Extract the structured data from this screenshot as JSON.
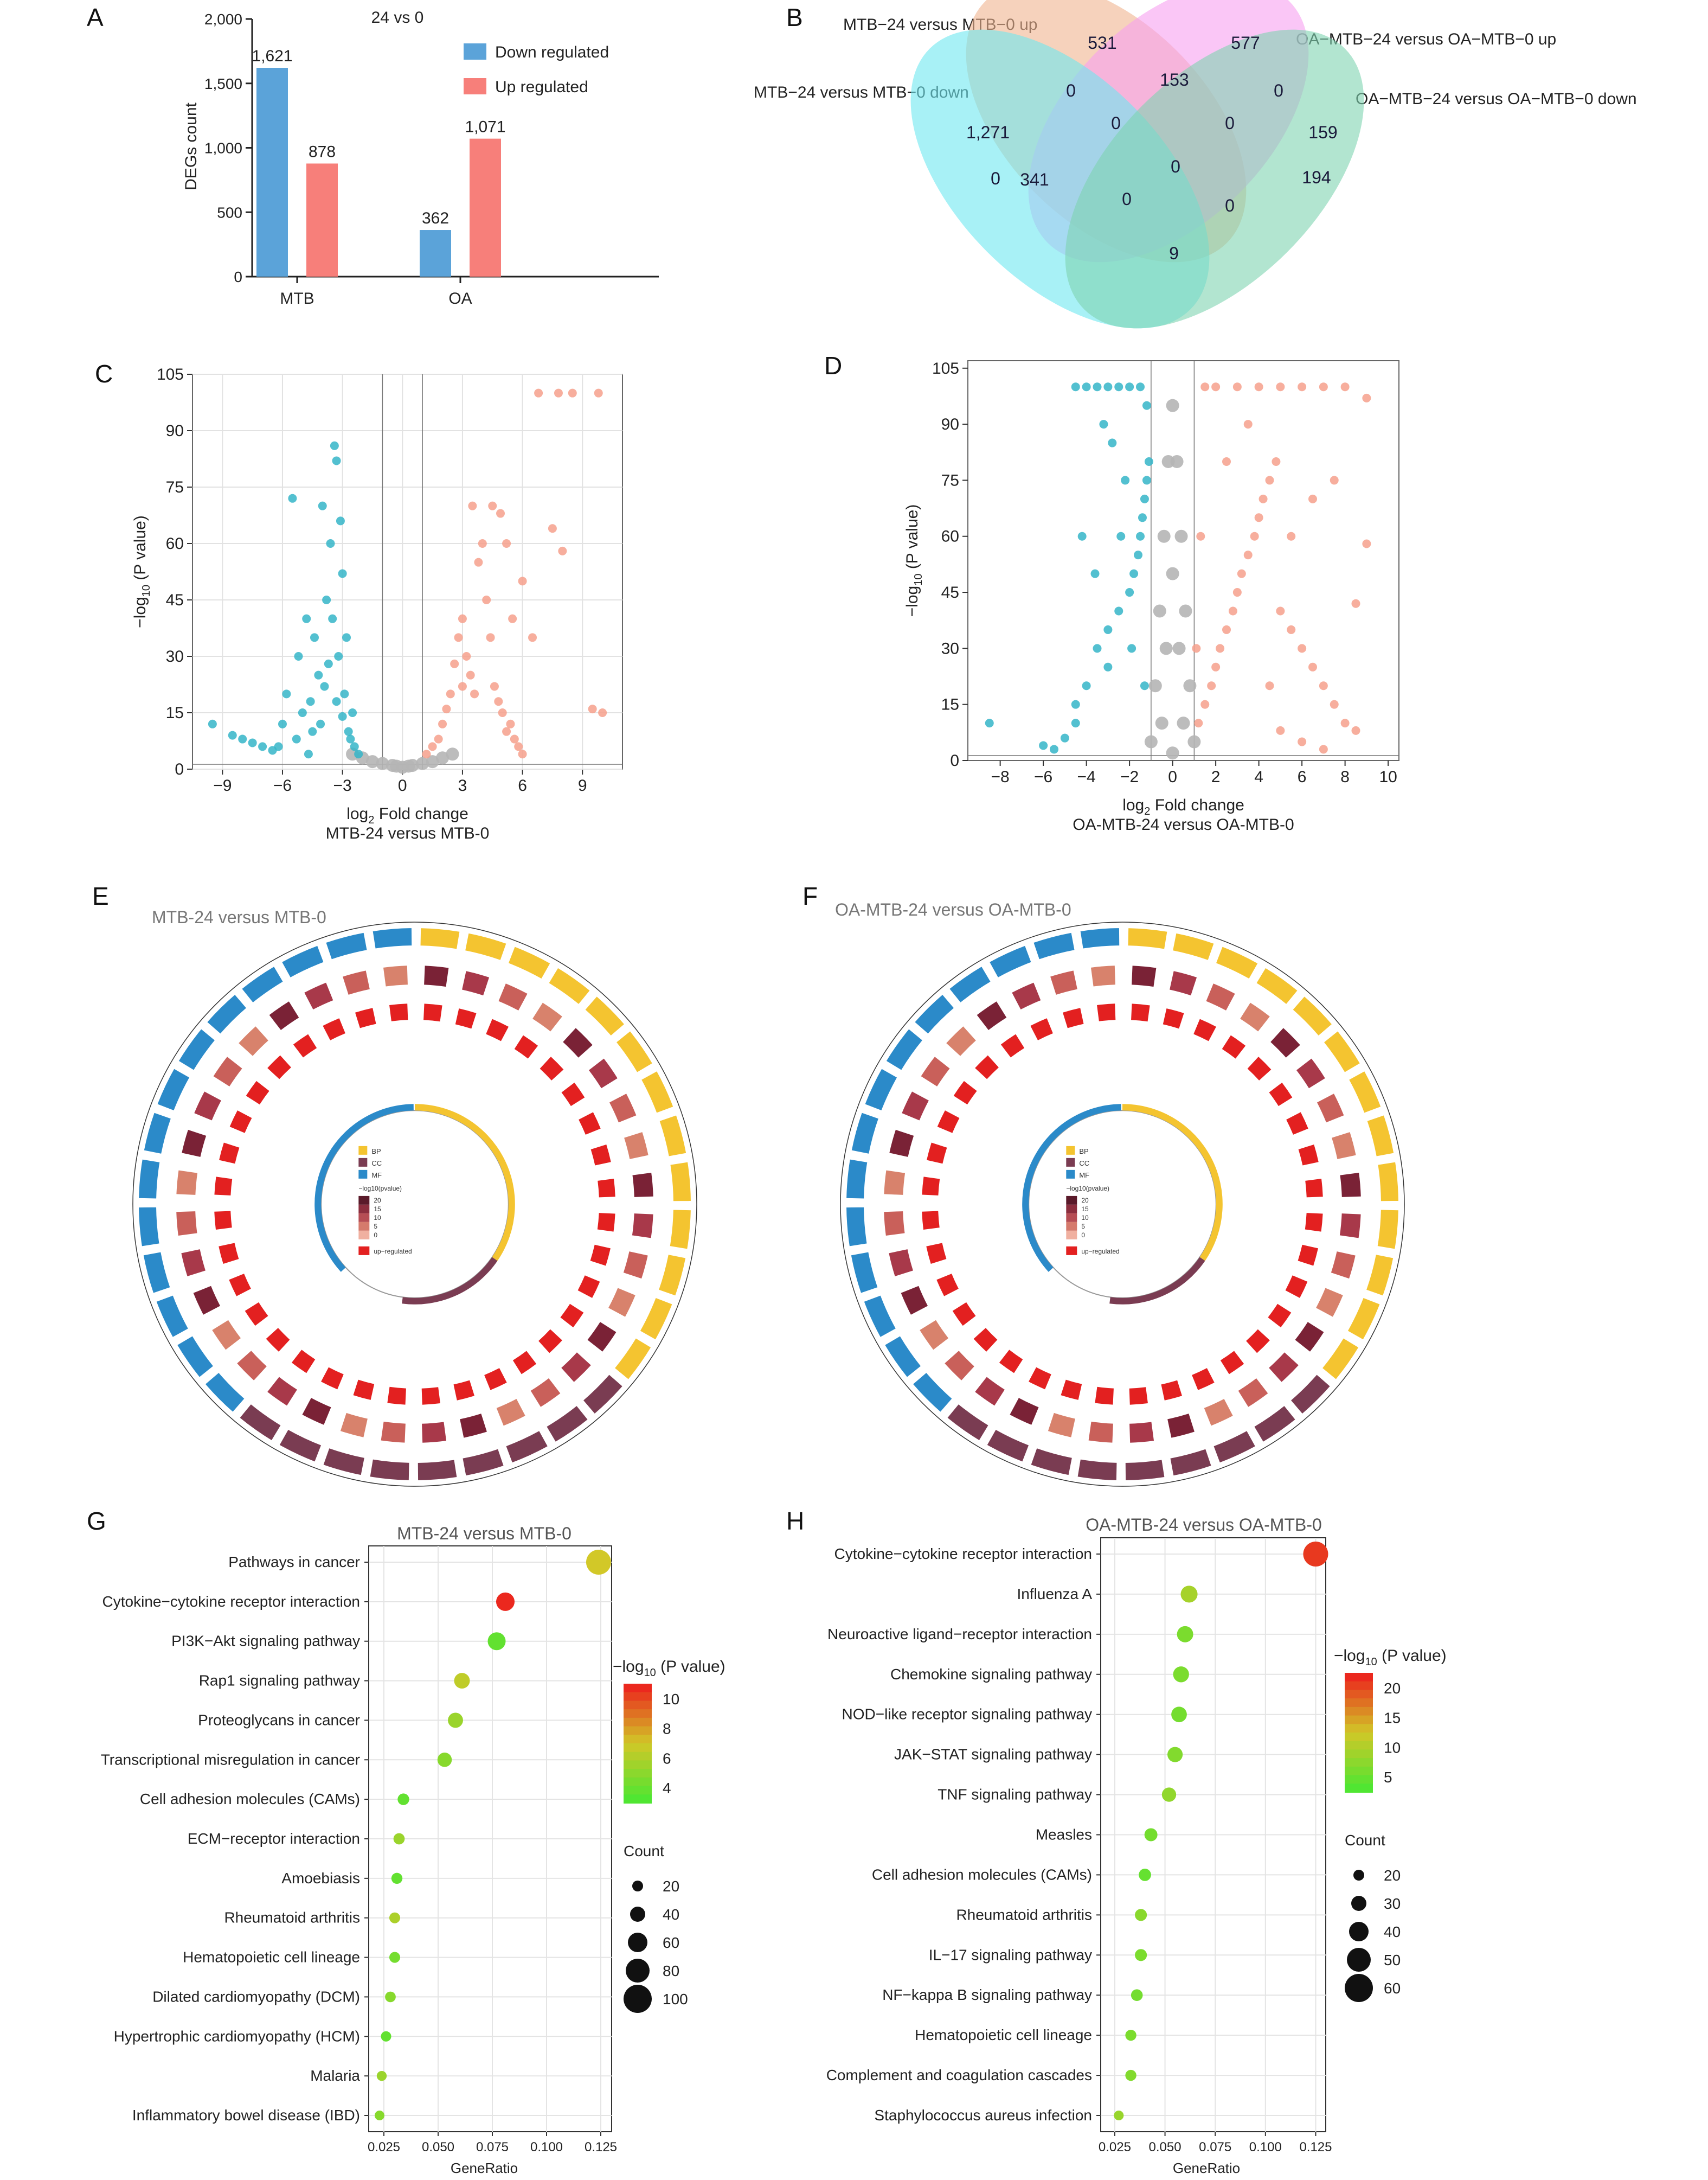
{
  "panels": {
    "A": {
      "letter": "A"
    },
    "B": {
      "letter": "B"
    },
    "C": {
      "letter": "C"
    },
    "D": {
      "letter": "D"
    },
    "E": {
      "letter": "E"
    },
    "F": {
      "letter": "F"
    },
    "G": {
      "letter": "G"
    },
    "H": {
      "letter": "H"
    }
  },
  "colors": {
    "down": "#5ba3d9",
    "up": "#f77f7a",
    "volcano_down": "#35b5c8",
    "volcano_up": "#f6a08c",
    "volcano_ns": "#b5b5b5",
    "venn": [
      "#f0b48f",
      "#f7a0f0",
      "#6ee8f0",
      "#7fd4b0"
    ]
  },
  "chart_data": [
    {
      "id": "A",
      "type": "bar",
      "title": "24 vs 0",
      "ylabel": "DEGs count",
      "categories": [
        "MTB",
        "OA"
      ],
      "series": [
        {
          "name": "Down regulated",
          "values": [
            1621,
            362
          ],
          "labels": [
            "1,621",
            "362"
          ]
        },
        {
          "name": "Up regulated",
          "values": [
            878,
            1071
          ],
          "labels": [
            "878",
            "1,071"
          ]
        }
      ],
      "ylim": [
        0,
        2000
      ],
      "yticks": [
        "0",
        "500",
        "1,000",
        "1,500",
        "2,000"
      ],
      "legend": "top-right"
    },
    {
      "id": "B",
      "type": "venn",
      "sets": [
        "MTB−24 versus MTB−0 up",
        "OA−MTB−24 versus OA−MTB−0 up",
        "MTB−24 versus MTB−0 down",
        "OA−MTB−24 versus OA−MTB−0 down"
      ],
      "regions": [
        "531",
        "577",
        "1,271",
        "159",
        "0",
        "153",
        "0",
        "0",
        "0",
        "0",
        "341",
        "0",
        "194",
        "0",
        "0",
        "9"
      ]
    },
    {
      "id": "C",
      "type": "scatter",
      "xlabel_main": "log",
      "xlabel_sub": "2",
      "xlabel_rest": " Fold change",
      "subtitle": "MTB-24 versus MTB-0",
      "ylabel_pre": "−log",
      "ylabel_sub": "10",
      "ylabel_rest": " (P value)",
      "xticks": [
        "−9",
        "−6",
        "−3",
        "0",
        "3",
        "6",
        "9"
      ],
      "xtick_values": [
        -9,
        -6,
        -3,
        0,
        3,
        6,
        9
      ],
      "yticks": [
        "0",
        "15",
        "30",
        "45",
        "60",
        "75",
        "90",
        "105"
      ],
      "ytick_values": [
        0,
        15,
        30,
        45,
        60,
        75,
        90,
        105
      ],
      "xlim": [
        -10.5,
        11
      ],
      "ylim": [
        0,
        105
      ],
      "down_points": [
        [
          -9.5,
          12
        ],
        [
          -8.5,
          9
        ],
        [
          -8,
          8
        ],
        [
          -7.5,
          7
        ],
        [
          -7,
          6
        ],
        [
          -6.5,
          5
        ],
        [
          -6,
          12
        ],
        [
          -5.8,
          20
        ],
        [
          -5.5,
          72
        ],
        [
          -5.2,
          30
        ],
        [
          -5,
          15
        ],
        [
          -4.8,
          40
        ],
        [
          -4.5,
          10
        ],
        [
          -4.2,
          25
        ],
        [
          -4,
          70
        ],
        [
          -3.8,
          45
        ],
        [
          -3.6,
          60
        ],
        [
          -3.4,
          86
        ],
        [
          -3.3,
          82
        ],
        [
          -3.2,
          30
        ],
        [
          -3.1,
          66
        ],
        [
          -3,
          52
        ],
        [
          -2.9,
          20
        ],
        [
          -2.8,
          35
        ],
        [
          -2.7,
          10
        ],
        [
          -2.6,
          8
        ],
        [
          -2.5,
          15
        ],
        [
          -4.6,
          18
        ],
        [
          -4.1,
          12
        ],
        [
          -3.5,
          40
        ],
        [
          -3.7,
          28
        ],
        [
          -5.3,
          8
        ],
        [
          -6.2,
          6
        ],
        [
          -4.4,
          35
        ],
        [
          -3.9,
          22
        ],
        [
          -2.4,
          6
        ],
        [
          -2.2,
          4
        ],
        [
          -3,
          14
        ],
        [
          -3.3,
          18
        ],
        [
          -4.7,
          4
        ]
      ],
      "up_points": [
        [
          1.2,
          4
        ],
        [
          1.5,
          6
        ],
        [
          1.8,
          8
        ],
        [
          2,
          12
        ],
        [
          2.2,
          16
        ],
        [
          2.4,
          20
        ],
        [
          2.6,
          28
        ],
        [
          2.8,
          35
        ],
        [
          3,
          40
        ],
        [
          3.2,
          30
        ],
        [
          3.4,
          25
        ],
        [
          3.6,
          20
        ],
        [
          3.8,
          55
        ],
        [
          4,
          60
        ],
        [
          4.2,
          45
        ],
        [
          4.4,
          35
        ],
        [
          4.6,
          22
        ],
        [
          4.8,
          18
        ],
        [
          5,
          15
        ],
        [
          5.2,
          10
        ],
        [
          5.4,
          12
        ],
        [
          5.6,
          8
        ],
        [
          5.8,
          6
        ],
        [
          6,
          4
        ],
        [
          4.5,
          70
        ],
        [
          4.9,
          68
        ],
        [
          5.2,
          60
        ],
        [
          6,
          50
        ],
        [
          6.5,
          35
        ],
        [
          7.5,
          64
        ],
        [
          8,
          58
        ],
        [
          9.5,
          16
        ],
        [
          10,
          15
        ],
        [
          6.8,
          100
        ],
        [
          7.8,
          100
        ],
        [
          8.5,
          100
        ],
        [
          9.8,
          100
        ],
        [
          3.5,
          70
        ],
        [
          5.5,
          40
        ],
        [
          3,
          22
        ]
      ],
      "ns_points": [
        [
          -2,
          3
        ],
        [
          -1.5,
          2
        ],
        [
          -1,
          1.5
        ],
        [
          -0.5,
          1
        ],
        [
          0,
          0.5
        ],
        [
          0.5,
          1
        ],
        [
          1,
          1.5
        ],
        [
          1.5,
          2
        ],
        [
          2,
          3
        ],
        [
          -2.5,
          4
        ],
        [
          2.5,
          4
        ],
        [
          0.3,
          0.8
        ],
        [
          -0.3,
          0.8
        ]
      ]
    },
    {
      "id": "D",
      "type": "scatter",
      "xlabel_main": "log",
      "xlabel_sub": "2",
      "xlabel_rest": " Fold change",
      "subtitle": "OA-MTB-24 versus OA-MTB-0",
      "ylabel_pre": "−log",
      "ylabel_sub": "10",
      "ylabel_rest": " (P value)",
      "xticks": [
        "−8",
        "−6",
        "−4",
        "−2",
        "0",
        "2",
        "4",
        "6",
        "8",
        "10"
      ],
      "xtick_values": [
        -8,
        -6,
        -4,
        -2,
        0,
        2,
        4,
        6,
        8,
        10
      ],
      "yticks": [
        "0",
        "15",
        "30",
        "45",
        "60",
        "75",
        "90",
        "105"
      ],
      "ytick_values": [
        0,
        15,
        30,
        45,
        60,
        75,
        90,
        105
      ],
      "xlim": [
        -9.5,
        10.5
      ],
      "ylim": [
        0,
        107
      ],
      "down_points": [
        [
          -8.5,
          10
        ],
        [
          -6,
          4
        ],
        [
          -5.5,
          3
        ],
        [
          -5,
          6
        ],
        [
          -4.5,
          10
        ],
        [
          -4,
          20
        ],
        [
          -3.5,
          30
        ],
        [
          -3,
          35
        ],
        [
          -2.5,
          40
        ],
        [
          -2,
          45
        ],
        [
          -1.8,
          50
        ],
        [
          -1.6,
          55
        ],
        [
          -1.5,
          60
        ],
        [
          -1.4,
          65
        ],
        [
          -1.3,
          70
        ],
        [
          -1.2,
          75
        ],
        [
          -1.1,
          80
        ],
        [
          -3.2,
          90
        ],
        [
          -2.8,
          85
        ],
        [
          -4.2,
          60
        ],
        [
          -2.2,
          75
        ],
        [
          -3.6,
          50
        ],
        [
          -1.5,
          100
        ],
        [
          -2,
          100
        ],
        [
          -2.5,
          100
        ],
        [
          -3,
          100
        ],
        [
          -3.5,
          100
        ],
        [
          -4,
          100
        ],
        [
          -4.5,
          100
        ],
        [
          -1.2,
          95
        ],
        [
          -2.4,
          60
        ],
        [
          -1.9,
          30
        ],
        [
          -3,
          25
        ],
        [
          -4.5,
          15
        ],
        [
          -1.3,
          20
        ]
      ],
      "up_points": [
        [
          1.2,
          10
        ],
        [
          1.5,
          15
        ],
        [
          1.8,
          20
        ],
        [
          2,
          25
        ],
        [
          2.2,
          30
        ],
        [
          2.5,
          35
        ],
        [
          2.8,
          40
        ],
        [
          3,
          45
        ],
        [
          3.2,
          50
        ],
        [
          3.5,
          55
        ],
        [
          3.8,
          60
        ],
        [
          4,
          65
        ],
        [
          4.2,
          70
        ],
        [
          4.5,
          75
        ],
        [
          4.8,
          80
        ],
        [
          5,
          40
        ],
        [
          5.5,
          35
        ],
        [
          6,
          30
        ],
        [
          6.5,
          25
        ],
        [
          7,
          20
        ],
        [
          7.5,
          15
        ],
        [
          8,
          10
        ],
        [
          8.5,
          8
        ],
        [
          9,
          58
        ],
        [
          8.5,
          42
        ],
        [
          7.5,
          75
        ],
        [
          6.5,
          70
        ],
        [
          1.5,
          100
        ],
        [
          2,
          100
        ],
        [
          3,
          100
        ],
        [
          4,
          100
        ],
        [
          5,
          100
        ],
        [
          6,
          100
        ],
        [
          7,
          100
        ],
        [
          8,
          100
        ],
        [
          9,
          97
        ],
        [
          3.5,
          90
        ],
        [
          2.5,
          80
        ],
        [
          5.5,
          60
        ],
        [
          1.3,
          60
        ],
        [
          1.1,
          30
        ],
        [
          4.5,
          20
        ],
        [
          6,
          5
        ],
        [
          7,
          3
        ],
        [
          5,
          8
        ]
      ],
      "ns_points": [
        [
          -1,
          5
        ],
        [
          -0.8,
          20
        ],
        [
          -0.6,
          40
        ],
        [
          -0.4,
          60
        ],
        [
          -0.2,
          80
        ],
        [
          0,
          95
        ],
        [
          0.2,
          80
        ],
        [
          0.4,
          60
        ],
        [
          0.6,
          40
        ],
        [
          0.8,
          20
        ],
        [
          1,
          5
        ],
        [
          -0.5,
          10
        ],
        [
          0.5,
          10
        ],
        [
          0,
          2
        ],
        [
          -0.3,
          30
        ],
        [
          0.3,
          30
        ],
        [
          0,
          50
        ]
      ]
    },
    {
      "id": "E",
      "type": "circos",
      "title": "MTB-24 versus MTB-0",
      "legend_categories": [
        "BP",
        "CC",
        "MF"
      ],
      "legend_pvalue_label": "−log10(pvalue)",
      "legend_ticks": [
        "20",
        "15",
        "10",
        "5",
        "0"
      ],
      "legend_up": "up−regulated"
    },
    {
      "id": "F",
      "type": "circos",
      "title": "OA-MTB-24 versus OA-MTB-0",
      "legend_categories": [
        "BP",
        "CC",
        "MF"
      ],
      "legend_pvalue_label": "−log10(pvalue)",
      "legend_ticks": [
        "20",
        "15",
        "10",
        "5",
        "0"
      ],
      "legend_up": "up−regulated"
    },
    {
      "id": "G",
      "type": "scatter",
      "subtitle": "MTB-24 versus MTB-0",
      "xlabel": "GeneRatio",
      "xticks": [
        "0.025",
        "0.050",
        "0.075",
        "0.100",
        "0.125"
      ],
      "xtick_values": [
        0.025,
        0.05,
        0.075,
        0.1,
        0.125
      ],
      "xlim": [
        0.018,
        0.13
      ],
      "terms": [
        "Pathways in cancer",
        "Cytokine−cytokine receptor interaction",
        "PI3K−Akt signaling pathway",
        "Rap1 signaling pathway",
        "Proteoglycans in cancer",
        "Transcriptional misregulation in cancer",
        "Cell adhesion molecules (CAMs)",
        "ECM−receptor interaction",
        "Amoebiasis",
        "Rheumatoid arthritis",
        "Hematopoietic cell lineage",
        "Dilated cardiomyopathy (DCM)",
        "Hypertrophic cardiomyopathy (HCM)",
        "Malaria",
        "Inflammatory bowel disease (IBD)"
      ],
      "gene_ratio": [
        0.124,
        0.081,
        0.077,
        0.061,
        0.058,
        0.053,
        0.034,
        0.032,
        0.031,
        0.03,
        0.03,
        0.028,
        0.026,
        0.024,
        0.023
      ],
      "count": [
        100,
        65,
        62,
        50,
        47,
        43,
        28,
        26,
        25,
        24,
        24,
        23,
        21,
        19,
        18
      ],
      "neglog10p": [
        7.5,
        11,
        4.5,
        7,
        6,
        5.5,
        4.5,
        6,
        4.5,
        6.5,
        5,
        5.5,
        4.5,
        6,
        5.5
      ],
      "color_label_pre": "−log",
      "color_label_sub": "10",
      "color_label_rest": " (P value)",
      "color_ticks": [
        "10",
        "8",
        "6",
        "4"
      ],
      "color_range": [
        4,
        11
      ],
      "size_label": "Count",
      "size_ticks": [
        "20",
        "40",
        "60",
        "80",
        "100"
      ]
    },
    {
      "id": "H",
      "type": "scatter",
      "subtitle": "OA-MTB-24 versus OA-MTB-0",
      "xlabel": "GeneRatio",
      "xticks": [
        "0.025",
        "0.050",
        "0.075",
        "0.100",
        "0.125"
      ],
      "xtick_values": [
        0.025,
        0.05,
        0.075,
        0.1,
        0.125
      ],
      "xlim": [
        0.018,
        0.13
      ],
      "terms": [
        "Cytokine−cytokine receptor interaction",
        "Influenza A",
        "Neuroactive ligand−receptor interaction",
        "Chemokine signaling pathway",
        "NOD−like receptor signaling pathway",
        "JAK−STAT signaling pathway",
        "TNF signaling pathway",
        "Measles",
        "Cell adhesion molecules (CAMs)",
        "Rheumatoid arthritis",
        "IL−17 signaling pathway",
        "NF−kappa B signaling pathway",
        "Hematopoietic cell lineage",
        "Complement and coagulation cascades",
        "Staphylococcus aureus infection"
      ],
      "gene_ratio": [
        0.125,
        0.062,
        0.06,
        0.058,
        0.057,
        0.055,
        0.052,
        0.043,
        0.04,
        0.038,
        0.038,
        0.036,
        0.033,
        0.033,
        0.027
      ],
      "count": [
        63,
        38,
        36,
        35,
        34,
        33,
        30,
        26,
        24,
        23,
        23,
        22,
        20,
        20,
        16
      ],
      "neglog10p": [
        20,
        9,
        6,
        6,
        5.5,
        6.5,
        7.5,
        5.5,
        4.5,
        7,
        6,
        5.5,
        6,
        6.5,
        8
      ],
      "color_label_pre": "−log",
      "color_label_sub": "10",
      "color_label_rest": " (P value)",
      "color_ticks": [
        "20",
        "15",
        "10",
        "5"
      ],
      "color_range": [
        3,
        21
      ],
      "size_label": "Count",
      "size_ticks": [
        "20",
        "30",
        "40",
        "50",
        "60"
      ]
    }
  ]
}
